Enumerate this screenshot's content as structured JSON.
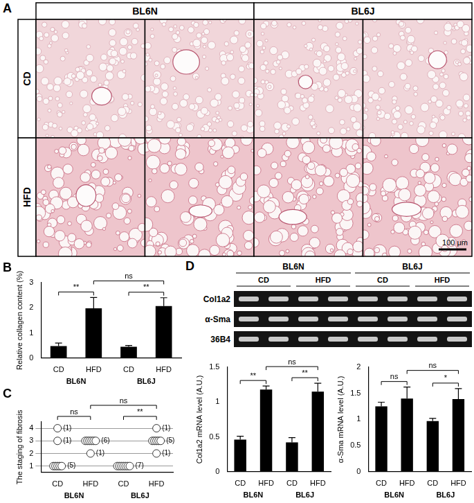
{
  "panels": [
    "A",
    "B",
    "C",
    "D"
  ],
  "histology": {
    "columns": [
      "BL6N",
      "BL6J"
    ],
    "rows": [
      "CD",
      "HFD"
    ],
    "scale_bar": "100 μm"
  },
  "gel": {
    "groups": [
      "BL6N",
      "BL6J"
    ],
    "conditions": [
      "CD",
      "HFD",
      "CD",
      "HFD"
    ],
    "genes": [
      "Col1a2",
      "α-Sma",
      "36B4"
    ]
  },
  "chart_data": [
    {
      "type": "bar",
      "y_label": "Relative collagen content (%)",
      "categories": [
        "CD",
        "HFD",
        "CD",
        "HFD"
      ],
      "group_labels": [
        "BL6N",
        "BL6J"
      ],
      "values": [
        0.48,
        1.98,
        0.45,
        2.07
      ],
      "errors": [
        0.12,
        0.43,
        0.05,
        0.33
      ],
      "color": "#000000",
      "ylim": [
        0,
        3
      ],
      "yticks": [
        0,
        1,
        2,
        3
      ],
      "grid": false,
      "significance": [
        {
          "pair": [
            0,
            1
          ],
          "label": "**"
        },
        {
          "pair": [
            1,
            3
          ],
          "label": "ns"
        },
        {
          "pair": [
            2,
            3
          ],
          "label": "**"
        }
      ]
    },
    {
      "type": "scatter",
      "y_label": "The staging of fibrosis",
      "categories": [
        "CD",
        "HFD",
        "CD",
        "HFD"
      ],
      "group_labels": [
        "BL6N",
        "BL6J"
      ],
      "points": [
        {
          "category": 0,
          "stage": 4,
          "count": 1,
          "label": "(1)"
        },
        {
          "category": 0,
          "stage": 3,
          "count": 1,
          "label": "(1)"
        },
        {
          "category": 0,
          "stage": 1,
          "count": 5,
          "label": "(5)"
        },
        {
          "category": 1,
          "stage": 3,
          "count": 6,
          "label": "(6)"
        },
        {
          "category": 1,
          "stage": 2,
          "count": 1,
          "label": "(1)"
        },
        {
          "category": 2,
          "stage": 1,
          "count": 7,
          "label": "(7)"
        },
        {
          "category": 3,
          "stage": 4,
          "count": 1,
          "label": "(1)"
        },
        {
          "category": 3,
          "stage": 3,
          "count": 5,
          "label": "(5)"
        },
        {
          "category": 3,
          "stage": 2,
          "count": 1,
          "label": "(1)"
        }
      ],
      "marker": "open_circle",
      "color": "#333333",
      "ylim": [
        0.5,
        4.5
      ],
      "yticks": [
        1,
        2,
        3,
        4
      ],
      "grid": true,
      "significance": [
        {
          "pair": [
            0,
            1
          ],
          "label": "ns"
        },
        {
          "pair": [
            1,
            3
          ],
          "label": "ns"
        },
        {
          "pair": [
            2,
            3
          ],
          "label": "**"
        }
      ]
    },
    {
      "type": "bar",
      "y_label": "Col1a2 mRNA level (A.U.)",
      "categories": [
        "CD",
        "HFD",
        "CD",
        "HFD"
      ],
      "group_labels": [
        "BL6N",
        "BL6J"
      ],
      "values": [
        0.46,
        1.18,
        0.42,
        1.15
      ],
      "errors": [
        0.05,
        0.05,
        0.07,
        0.12
      ],
      "color": "#000000",
      "ylim": [
        0,
        1.5
      ],
      "yticks": [
        0,
        0.5,
        1,
        1.5
      ],
      "grid": false,
      "significance": [
        {
          "pair": [
            0,
            1
          ],
          "label": "**"
        },
        {
          "pair": [
            1,
            3
          ],
          "label": "ns"
        },
        {
          "pair": [
            2,
            3
          ],
          "label": "**"
        }
      ]
    },
    {
      "type": "bar",
      "y_label": "α-Sma mRNA level (A.U.)",
      "categories": [
        "CD",
        "HFD",
        "CD",
        "HFD"
      ],
      "group_labels": [
        "BL6N",
        "BL6J"
      ],
      "values": [
        1.25,
        1.4,
        0.97,
        1.39
      ],
      "errors": [
        0.08,
        0.22,
        0.05,
        0.2
      ],
      "color": "#000000",
      "ylim": [
        0,
        2
      ],
      "yticks": [
        0,
        0.5,
        1,
        1.5,
        2
      ],
      "grid": false,
      "significance": [
        {
          "pair": [
            0,
            1
          ],
          "label": "ns"
        },
        {
          "pair": [
            1,
            3
          ],
          "label": "ns"
        },
        {
          "pair": [
            2,
            3
          ],
          "label": "*"
        }
      ]
    }
  ]
}
